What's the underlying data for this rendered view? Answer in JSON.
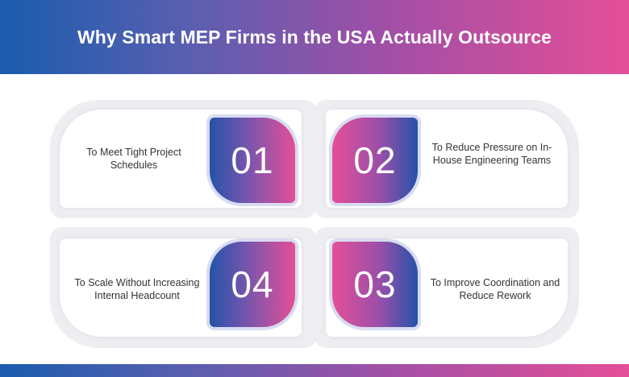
{
  "header": {
    "title": "Why Smart MEP Firms in the USA Actually Outsource"
  },
  "items": [
    {
      "number": "01",
      "text": "To Meet Tight Project Schedules"
    },
    {
      "number": "02",
      "text": "To Reduce Pressure on In-House Engineering Teams"
    },
    {
      "number": "03",
      "text": "To Improve Coordination and Reduce Rework"
    },
    {
      "number": "04",
      "text": "To Scale Without Increasing Internal Headcount"
    }
  ],
  "colors": {
    "blue": "#1a5cae",
    "purple": "#a24fa6",
    "pink": "#e44f97"
  }
}
